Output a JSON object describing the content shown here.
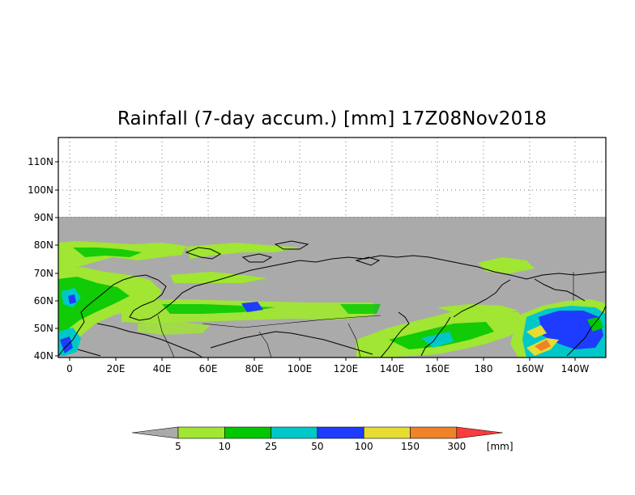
{
  "map": {
    "title": "Rainfall (7-day accum.) [mm] 17Z08Nov2018",
    "lat_labels": [
      "110N",
      "100N",
      "90N",
      "80N",
      "70N",
      "60N",
      "50N",
      "40N"
    ],
    "lon_labels": [
      "0",
      "20E",
      "40E",
      "60E",
      "80E",
      "100E",
      "120E",
      "140E",
      "160E",
      "180",
      "160W",
      "140W"
    ],
    "no_data_color": "#aaaaaa",
    "coastline_color": "#000000"
  },
  "legend": {
    "unit": "[mm]",
    "thresholds": [
      "5",
      "10",
      "25",
      "50",
      "100",
      "150",
      "300"
    ],
    "colors": [
      "#aaaaaa",
      "#a0e632",
      "#00c800",
      "#00c8c8",
      "#1e3cff",
      "#e6dc32",
      "#f08228",
      "#fa3c3c"
    ]
  }
}
